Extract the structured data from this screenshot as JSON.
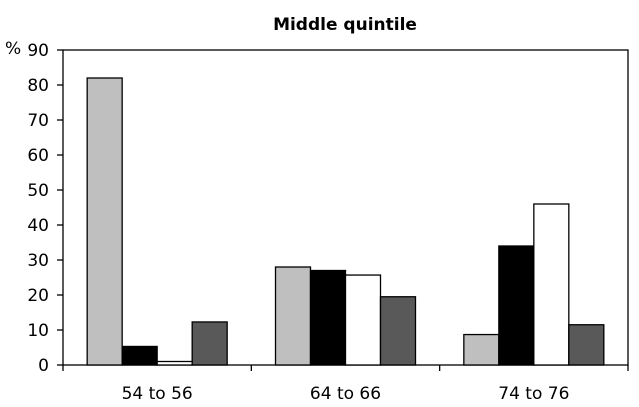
{
  "chart_data": {
    "type": "bar",
    "title": "Middle quintile",
    "ylabel": "%",
    "xlabel": "",
    "ylim": [
      0,
      90
    ],
    "yticks": [
      0,
      10,
      20,
      30,
      40,
      50,
      60,
      70,
      80,
      90
    ],
    "categories": [
      "54 to 56",
      "64 to 66",
      "74 to 76"
    ],
    "grid": false,
    "legend": "none",
    "series": [
      {
        "color": "#bfbfbf",
        "values": [
          82,
          28,
          8.7
        ]
      },
      {
        "color": "#000000",
        "values": [
          5.3,
          27,
          34
        ]
      },
      {
        "color": "#ffffff",
        "values": [
          1,
          25.7,
          46
        ]
      },
      {
        "color": "#595959",
        "values": [
          12.3,
          19.5,
          11.5
        ]
      }
    ]
  }
}
